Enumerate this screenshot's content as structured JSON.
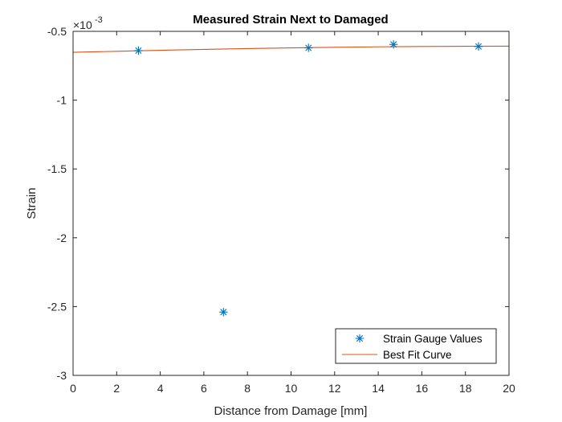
{
  "chart_data": {
    "type": "scatter",
    "title": "Measured Strain Next to Damaged",
    "xlabel": "Distance from Damage [mm]",
    "ylabel": "Strain",
    "xlim": [
      0,
      20
    ],
    "ylim": [
      -3,
      -0.5
    ],
    "y_exponent_base": "×10",
    "y_exponent_power": "-3",
    "x_ticks": [
      0,
      2,
      4,
      6,
      8,
      10,
      12,
      14,
      16,
      18,
      20
    ],
    "x_tick_labels": [
      "0",
      "2",
      "4",
      "6",
      "8",
      "10",
      "12",
      "14",
      "16",
      "18",
      "20"
    ],
    "y_ticks": [
      -3,
      -2.5,
      -2,
      -1.5,
      -1,
      -0.5
    ],
    "y_tick_labels": [
      "-3",
      "-2.5",
      "-2",
      "-1.5",
      "-1",
      "-0.5"
    ],
    "grid": false,
    "legend_position": "bottom-right",
    "series": [
      {
        "name": "Strain Gauge Values",
        "kind": "markers",
        "marker": "asterisk",
        "color": "#0072BD",
        "x": [
          3.0,
          6.9,
          10.8,
          14.7,
          18.6
        ],
        "y": [
          -0.64,
          -2.54,
          -0.62,
          -0.595,
          -0.61
        ]
      },
      {
        "name": "Best Fit Curve",
        "kind": "line",
        "color": "#D95319",
        "x": [
          0,
          2,
          4,
          6,
          8,
          10,
          12,
          14,
          16,
          18,
          20
        ],
        "y": [
          -0.6525,
          -0.645,
          -0.6375,
          -0.631,
          -0.625,
          -0.62,
          -0.616,
          -0.6125,
          -0.61,
          -0.6085,
          -0.6075
        ]
      }
    ]
  }
}
